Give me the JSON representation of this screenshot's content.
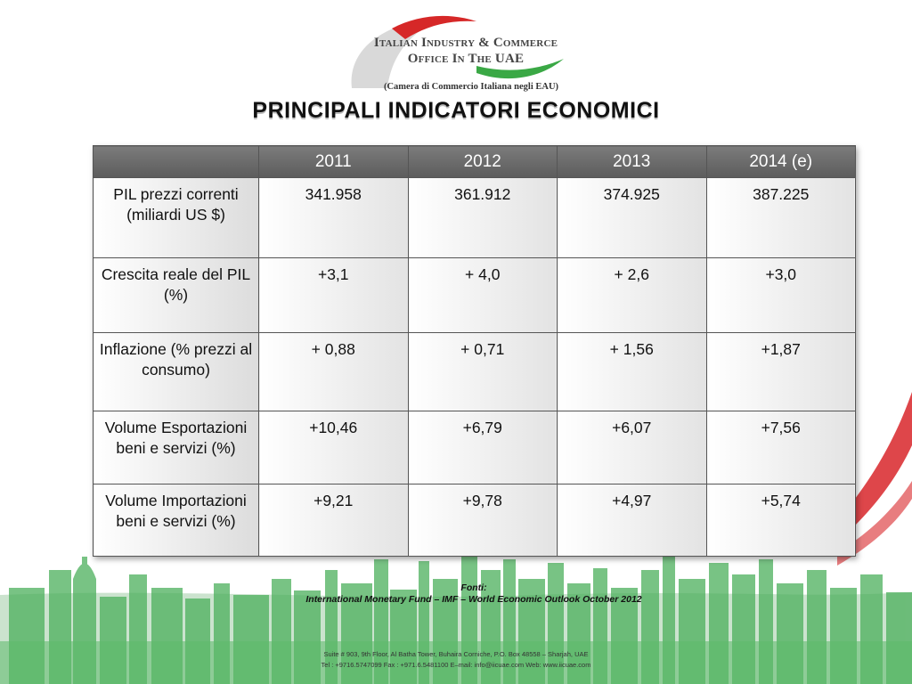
{
  "logo": {
    "line1": "Italian Industry & Commerce",
    "line2": "Office In The UAE",
    "subtitle": "(Camera di Commercio Italiana negli EAU)",
    "colors": {
      "red": "#d62828",
      "green": "#3aa845",
      "gray": "#cfcfcf"
    }
  },
  "title": "PRINCIPALI INDICATORI ECONOMICI",
  "table": {
    "headers": [
      "",
      "2011",
      "2012",
      "2013",
      "2014 (e)"
    ],
    "rows": [
      {
        "label": "PIL prezzi correnti (miliardi US $)",
        "values": [
          "341.958",
          "361.912",
          "374.925",
          "387.225"
        ]
      },
      {
        "label": "Crescita reale del PIL (%)",
        "values": [
          "+3,1",
          "+ 4,0",
          "+ 2,6",
          "+3,0"
        ]
      },
      {
        "label": "Inflazione (% prezzi al consumo)",
        "values": [
          "+ 0,88",
          "+ 0,71",
          "+ 1,56",
          "+1,87"
        ]
      },
      {
        "label": "Volume Esportazioni beni e servizi (%)",
        "values": [
          "+10,46",
          "+6,79",
          "+6,07",
          "+7,56"
        ]
      },
      {
        "label": "Volume Importazioni beni e servizi (%)",
        "values": [
          "+9,21",
          "+9,78",
          "+4,97",
          "+5,74"
        ]
      }
    ]
  },
  "sources": {
    "label": "Fonti:",
    "text": "International Monetary Fund – IMF – World Economic Outlook October 2012"
  },
  "footer": {
    "address": "Suite # 903, 9th Floor, Al Batha Tower, Buhaira Corniche, P.O. Box 48558 – Sharjah, UAE",
    "contacts": "Tel : +9716.5747099 Fax : +971.6.5481100 E–mail: info@iicuae.com Web: www.iicuae.com"
  },
  "decor": {
    "skyline_color": "#4caf5c",
    "ribbon_color": "#d8262a"
  }
}
